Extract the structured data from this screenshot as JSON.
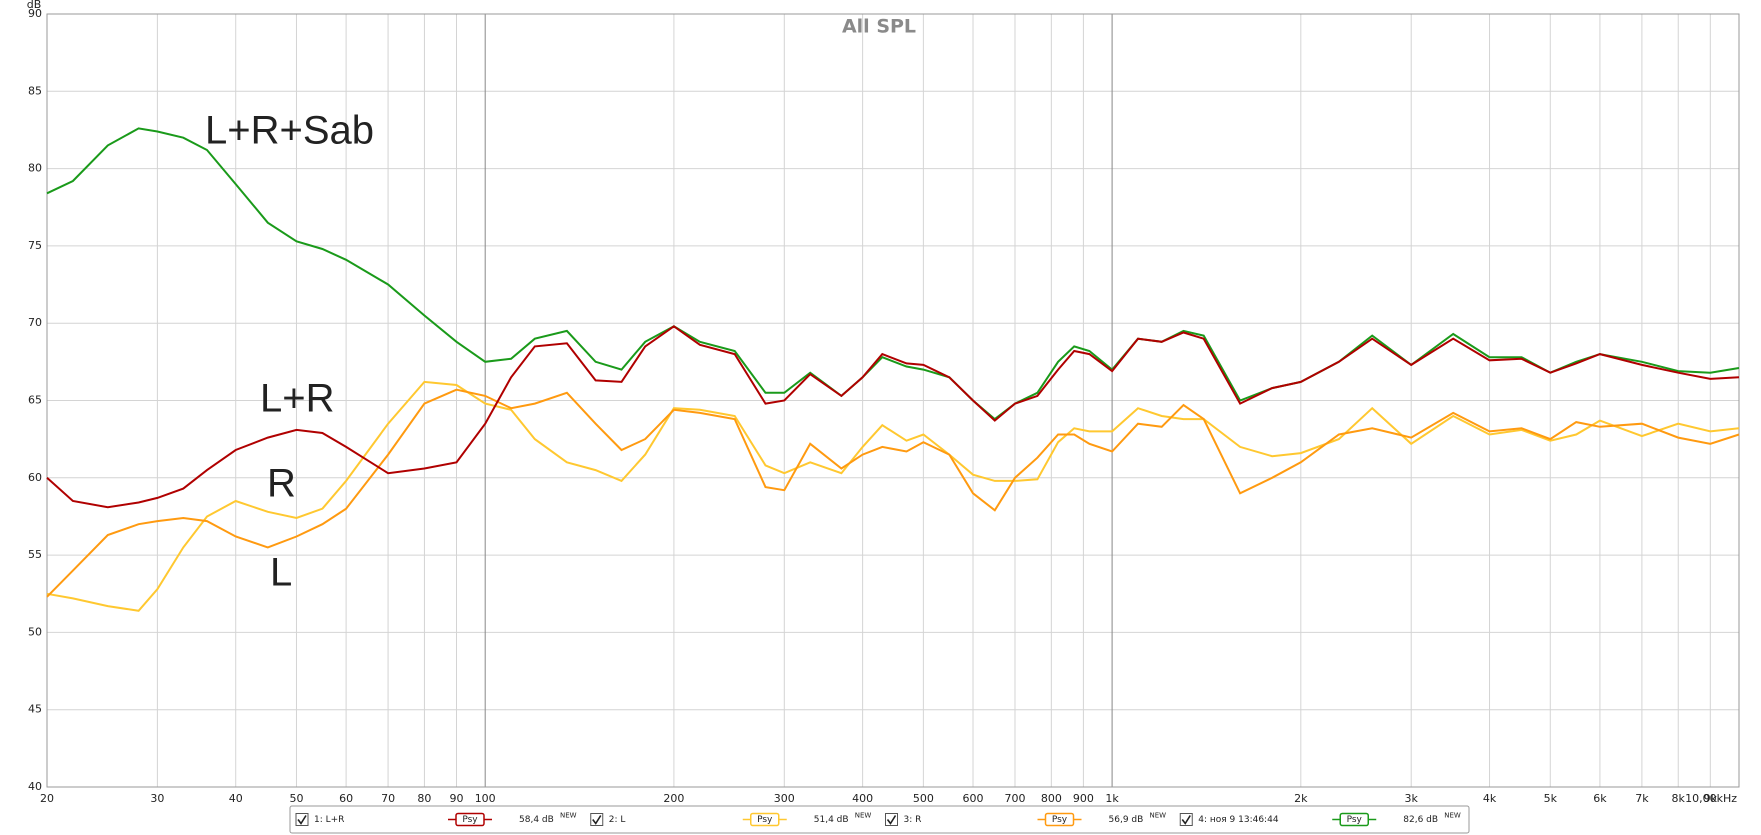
{
  "chart_data": {
    "type": "line",
    "title": "All SPL",
    "y_label": "dB",
    "log_x": true,
    "grid": true,
    "x": [
      20,
      22,
      25,
      28,
      30,
      33,
      36,
      40,
      45,
      50,
      55,
      60,
      70,
      80,
      90,
      100,
      110,
      120,
      135,
      150,
      165,
      180,
      200,
      220,
      250,
      280,
      300,
      330,
      370,
      400,
      430,
      470,
      500,
      550,
      600,
      650,
      700,
      760,
      820,
      870,
      920,
      1000,
      1100,
      1200,
      1300,
      1400,
      1600,
      1800,
      2000,
      2300,
      2600,
      3000,
      3500,
      4000,
      4500,
      5000,
      5500,
      6000,
      7000,
      8000,
      9000,
      10000
    ],
    "xlim": [
      20,
      10000
    ],
    "ylim": [
      40,
      90
    ],
    "xticks": [
      20,
      30,
      40,
      50,
      60,
      70,
      80,
      90,
      100,
      200,
      300,
      400,
      500,
      600,
      700,
      800,
      900,
      {
        "value": 1000,
        "label": "1k"
      },
      {
        "value": 2000,
        "label": "2k"
      },
      {
        "value": 3000,
        "label": "3k"
      },
      {
        "value": 4000,
        "label": "4k"
      },
      {
        "value": 5000,
        "label": "5k"
      },
      {
        "value": 6000,
        "label": "6k"
      },
      {
        "value": 7000,
        "label": "7k"
      },
      {
        "value": 8000,
        "label": "8k"
      },
      {
        "value": 9000,
        "label": "9k"
      },
      {
        "value": 10000,
        "label": "10,00kHz"
      }
    ],
    "yticks": [
      40,
      45,
      50,
      55,
      60,
      65,
      70,
      75,
      80,
      85,
      90
    ],
    "legend_button": "Psy",
    "legend_badge": "NEW",
    "series": [
      {
        "name": "1: L+R",
        "color": "#b00000",
        "level": "58,4 dB",
        "values": [
          60,
          58.5,
          58.1,
          58.4,
          58.7,
          59.3,
          60.5,
          61.8,
          62.6,
          63.1,
          62.9,
          62,
          60.3,
          60.6,
          61,
          63.5,
          66.5,
          68.5,
          68.7,
          66.3,
          66.2,
          68.5,
          69.8,
          68.6,
          68,
          64.8,
          65,
          66.7,
          65.3,
          66.5,
          68,
          67.4,
          67.3,
          66.5,
          65,
          63.7,
          64.8,
          65.3,
          67,
          68.2,
          68,
          66.9,
          69,
          68.8,
          69.4,
          69,
          64.8,
          65.8,
          66.2,
          67.5,
          69,
          67.3,
          69,
          67.6,
          67.7,
          66.8,
          67.4,
          68,
          67.3,
          66.8,
          66.4,
          66.5
        ]
      },
      {
        "name": "2: L",
        "color": "#ffc830",
        "level": "51,4 dB",
        "values": [
          52.5,
          52.2,
          51.7,
          51.4,
          52.8,
          55.5,
          57.5,
          58.5,
          57.8,
          57.4,
          58,
          59.8,
          63.5,
          66.2,
          66,
          64.8,
          64.4,
          62.5,
          61,
          60.5,
          59.8,
          61.5,
          64.5,
          64.4,
          64,
          60.8,
          60.3,
          61,
          60.3,
          62,
          63.4,
          62.4,
          62.8,
          61.5,
          60.2,
          59.8,
          59.8,
          59.9,
          62.3,
          63.2,
          63,
          63,
          64.5,
          64,
          63.8,
          63.8,
          62,
          61.4,
          61.6,
          62.5,
          64.5,
          62.2,
          64,
          62.8,
          63.1,
          62.4,
          62.8,
          63.7,
          62.7,
          63.5,
          63,
          63.2
        ]
      },
      {
        "name": "3: R",
        "color": "#ff9a10",
        "level": "56,9 dB",
        "values": [
          52.3,
          54,
          56.3,
          57,
          57.2,
          57.4,
          57.2,
          56.2,
          55.5,
          56.2,
          57,
          58,
          61.5,
          64.8,
          65.7,
          65.3,
          64.5,
          64.8,
          65.5,
          63.5,
          61.8,
          62.5,
          64.4,
          64.2,
          63.8,
          59.4,
          59.2,
          62.2,
          60.6,
          61.5,
          62,
          61.7,
          62.3,
          61.5,
          59,
          57.9,
          60,
          61.3,
          62.8,
          62.8,
          62.2,
          61.7,
          63.5,
          63.3,
          64.7,
          63.8,
          59,
          60,
          61,
          62.8,
          63.2,
          62.6,
          64.2,
          63,
          63.2,
          62.5,
          63.6,
          63.3,
          63.5,
          62.6,
          62.2,
          62.8
        ]
      },
      {
        "name": "4: ноя 9 13:46:44",
        "color": "#1a9a1a",
        "level": "82,6 dB",
        "values": [
          78.4,
          79.2,
          81.5,
          82.6,
          82.4,
          82,
          81.2,
          79,
          76.5,
          75.3,
          74.8,
          74.1,
          72.5,
          70.5,
          68.8,
          67.5,
          67.7,
          69,
          69.5,
          67.5,
          67,
          68.8,
          69.8,
          68.8,
          68.2,
          65.5,
          65.5,
          66.8,
          65.3,
          66.5,
          67.8,
          67.2,
          67,
          66.5,
          65,
          63.8,
          64.8,
          65.5,
          67.5,
          68.5,
          68.2,
          67,
          69,
          68.8,
          69.5,
          69.2,
          65,
          65.8,
          66.2,
          67.5,
          69.2,
          67.3,
          69.3,
          67.8,
          67.8,
          66.8,
          67.5,
          68,
          67.5,
          66.9,
          66.8,
          67.1
        ]
      }
    ],
    "annotations": [
      "L+R+Sab",
      "L+R",
      "R",
      "L"
    ],
    "annotation_color": "#7a0a0a"
  }
}
